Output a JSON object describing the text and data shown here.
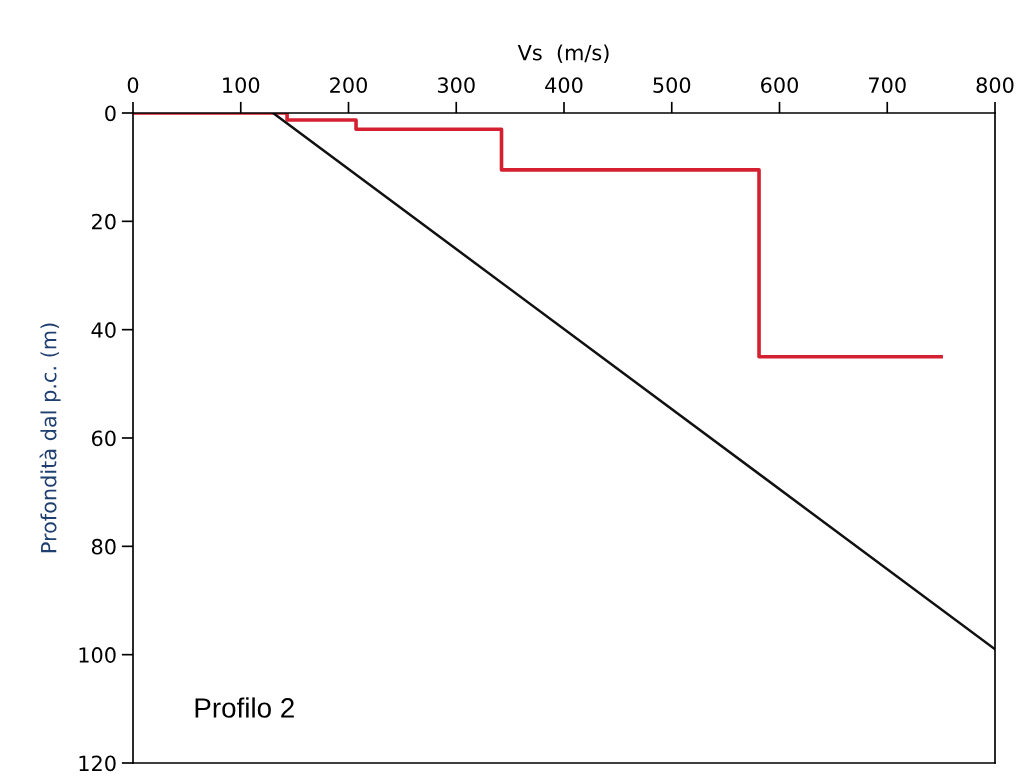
{
  "chart_data": {
    "type": "line",
    "xlabel": "Vs  (m/s)",
    "ylabel": "Profondità dal p.c. (m)",
    "xlim": [
      0,
      800
    ],
    "xticks": [
      0,
      100,
      200,
      300,
      400,
      500,
      600,
      700,
      800
    ],
    "ylim": [
      120,
      0
    ],
    "yticks": [
      0,
      20,
      40,
      60,
      80,
      100,
      120
    ],
    "grid": false,
    "marker": "none",
    "line_style": "solid",
    "series": [
      {
        "color": "#d42030",
        "x": [
          0,
          143,
          143,
          207,
          207,
          342,
          342,
          581,
          581,
          750
        ],
        "values": [
          0,
          0,
          1.3,
          1.3,
          3,
          3,
          10.5,
          10.5,
          45,
          45
        ]
      },
      {
        "color": "#111111",
        "x": [
          130,
          800
        ],
        "values": [
          0,
          99
        ]
      }
    ],
    "annotations": [
      "Profilo 2"
    ]
  }
}
